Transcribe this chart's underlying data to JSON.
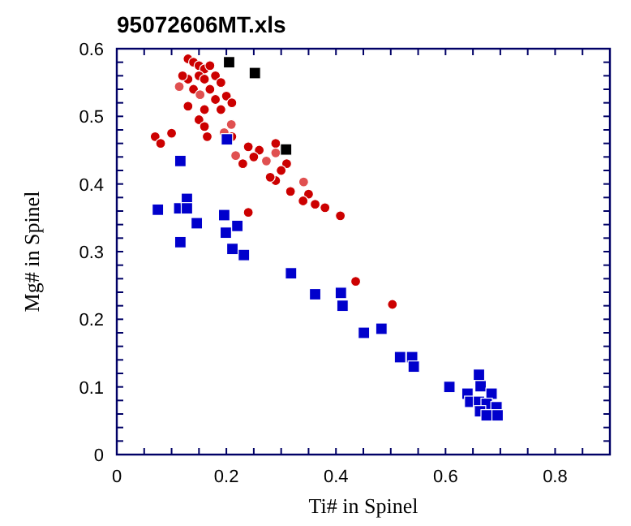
{
  "chart_data": {
    "type": "scatter",
    "title": "95072606MT.xls",
    "xlabel": "Ti# in Spinel",
    "ylabel": "Mg# in Spinel",
    "xlim": [
      0,
      0.9
    ],
    "ylim": [
      0,
      0.6
    ],
    "xticks": [
      0,
      {
        "value": 0.05,
        "label": null
      },
      0.2,
      {
        "value": 0.1,
        "label": null
      },
      {
        "value": 0.15,
        "label": null
      },
      {
        "value": 0.25,
        "label": null
      },
      {
        "value": 0.3,
        "label": null
      },
      {
        "value": 0.35,
        "label": null
      },
      0.4,
      {
        "value": 0.45,
        "label": null
      },
      {
        "value": 0.5,
        "label": null
      },
      {
        "value": 0.55,
        "label": null
      },
      0.6,
      {
        "value": 0.65,
        "label": null
      },
      {
        "value": 0.7,
        "label": null
      },
      {
        "value": 0.75,
        "label": null
      },
      0.8,
      {
        "value": 0.85,
        "label": null
      }
    ],
    "yticks": [
      0,
      {
        "value": 0.02,
        "label": null
      },
      {
        "value": 0.04,
        "label": null
      },
      {
        "value": 0.06,
        "label": null
      },
      {
        "value": 0.08,
        "label": null
      },
      0.1,
      {
        "value": 0.12,
        "label": null
      },
      {
        "value": 0.14,
        "label": null
      },
      {
        "value": 0.16,
        "label": null
      },
      {
        "value": 0.18,
        "label": null
      },
      0.2,
      {
        "value": 0.22,
        "label": null
      },
      {
        "value": 0.24,
        "label": null
      },
      {
        "value": 0.26,
        "label": null
      },
      {
        "value": 0.28,
        "label": null
      },
      0.3,
      {
        "value": 0.32,
        "label": null
      },
      {
        "value": 0.34,
        "label": null
      },
      {
        "value": 0.36,
        "label": null
      },
      {
        "value": 0.38,
        "label": null
      },
      0.4,
      {
        "value": 0.42,
        "label": null
      },
      {
        "value": 0.44,
        "label": null
      },
      {
        "value": 0.46,
        "label": null
      },
      {
        "value": 0.48,
        "label": null
      },
      0.5,
      {
        "value": 0.52,
        "label": null
      },
      {
        "value": 0.54,
        "label": null
      },
      {
        "value": 0.56,
        "label": null
      },
      {
        "value": 0.58,
        "label": null
      },
      0.6
    ],
    "grid": false,
    "series": [
      {
        "color": "#cc0000",
        "marker": "circle",
        "x": [
          0.13,
          0.14,
          0.15,
          0.16,
          0.17,
          0.15,
          0.13,
          0.12,
          0.16,
          0.18,
          0.19,
          0.14,
          0.17,
          0.2,
          0.18,
          0.21,
          0.16,
          0.19,
          0.13,
          0.15,
          0.16,
          0.165,
          0.07,
          0.08,
          0.1,
          0.21,
          0.24,
          0.26,
          0.25,
          0.29,
          0.23,
          0.31,
          0.3,
          0.29,
          0.28,
          0.317,
          0.35,
          0.362,
          0.34,
          0.38,
          0.408,
          0.24,
          0.436,
          0.503
        ],
        "values": [
          0.585,
          0.58,
          0.575,
          0.57,
          0.575,
          0.56,
          0.555,
          0.56,
          0.555,
          0.56,
          0.55,
          0.54,
          0.54,
          0.53,
          0.525,
          0.52,
          0.51,
          0.51,
          0.515,
          0.495,
          0.485,
          0.47,
          0.47,
          0.46,
          0.475,
          0.47,
          0.455,
          0.45,
          0.44,
          0.46,
          0.43,
          0.43,
          0.42,
          0.405,
          0.41,
          0.389,
          0.385,
          0.37,
          0.375,
          0.365,
          0.353,
          0.358,
          0.256,
          0.222
        ]
      },
      {
        "color": "#e05050",
        "marker": "circle",
        "x": [
          0.114,
          0.152,
          0.209,
          0.196,
          0.217,
          0.273,
          0.29,
          0.341
        ],
        "values": [
          0.544,
          0.532,
          0.488,
          0.476,
          0.442,
          0.434,
          0.446,
          0.403
        ]
      },
      {
        "color": "#000000",
        "marker": "square",
        "x": [
          0.205,
          0.252,
          0.309
        ],
        "values": [
          0.58,
          0.564,
          0.451
        ]
      },
      {
        "color": "#0000cc",
        "marker": "square",
        "x": [
          0.116,
          0.075,
          0.114,
          0.128,
          0.128,
          0.146,
          0.196,
          0.22,
          0.199,
          0.116,
          0.211,
          0.232,
          0.318,
          0.362,
          0.412,
          0.451,
          0.483,
          0.517,
          0.539,
          0.542,
          0.607
        ],
        "values": [
          0.434,
          0.362,
          0.364,
          0.378,
          0.364,
          0.342,
          0.354,
          0.338,
          0.328,
          0.314,
          0.304,
          0.295,
          0.268,
          0.237,
          0.22,
          0.18,
          0.186,
          0.144,
          0.144,
          0.13,
          0.1
        ]
      },
      {
        "color": "#0000cc",
        "marker": "square",
        "x": [
          0.201,
          0.409,
          0.661,
          0.664,
          0.64,
          0.684,
          0.645,
          0.661,
          0.675,
          0.693,
          0.663,
          0.675,
          0.695
        ],
        "values": [
          0.466,
          0.239,
          0.118,
          0.101,
          0.09,
          0.09,
          0.078,
          0.078,
          0.075,
          0.07,
          0.064,
          0.058,
          0.058
        ]
      }
    ]
  }
}
